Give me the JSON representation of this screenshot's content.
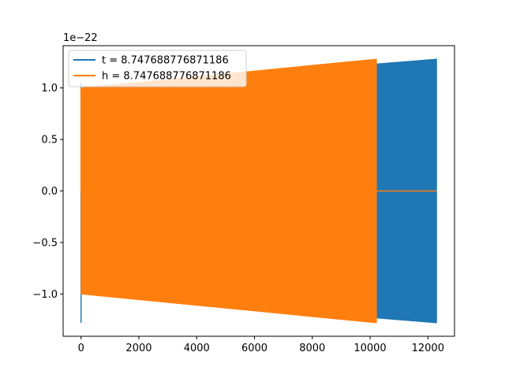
{
  "chart_data": {
    "type": "line",
    "title": "",
    "xlabel": "",
    "ylabel": "",
    "offset_text": "1e−22",
    "xlim": [
      -620,
      12920
    ],
    "ylim": [
      -1.41,
      1.41
    ],
    "xticks": [
      0,
      2000,
      4000,
      6000,
      8000,
      10000,
      12000
    ],
    "xtick_labels": [
      "0",
      "2000",
      "4000",
      "6000",
      "8000",
      "10000",
      "12000"
    ],
    "yticks": [
      -1.0,
      -0.5,
      0.0,
      0.5,
      1.0
    ],
    "ytick_labels": [
      "−1.0",
      "−0.5",
      "0.0",
      "0.5",
      "1.0"
    ],
    "legend_position": "upper-left",
    "grid": false,
    "series": [
      {
        "name": "t = 8.747688776871186",
        "color": "#1f77b4",
        "description": "oscillation with slowly growing envelope",
        "x_range": [
          0,
          12300
        ],
        "envelope": {
          "x": [
            0,
            12300
          ],
          "upper": [
            1.0,
            1.28
          ],
          "lower": [
            -1.0,
            -1.28
          ]
        },
        "spike_at_start": [
          -1.28,
          1.05
        ]
      },
      {
        "name": "h = 8.747688776871186",
        "color": "#ff7f0e",
        "description": "oscillation with growing envelope, then flat zero",
        "x_range": [
          0,
          12300
        ],
        "envelope": {
          "x": [
            0,
            10220
          ],
          "upper": [
            1.0,
            1.28
          ],
          "lower": [
            -1.0,
            -1.28
          ]
        },
        "zero_after": 10220
      }
    ]
  }
}
